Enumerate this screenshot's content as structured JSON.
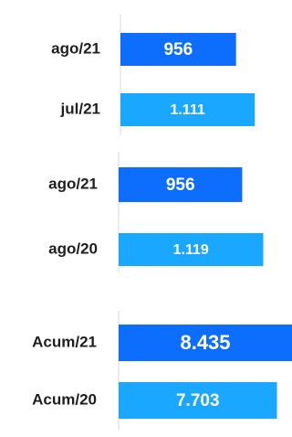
{
  "colors": {
    "current": "#0d6efd",
    "comparison": "#1aa7ff",
    "axis": "#d9d9d9",
    "label_text": "#1f1f1f",
    "value_text": "#ffffff"
  },
  "chart_data": [
    {
      "type": "bar",
      "orientation": "horizontal",
      "categories": [
        "ago/21",
        "jul/21"
      ],
      "values": [
        956,
        1111
      ],
      "value_labels": [
        "956",
        "1.111"
      ],
      "bar_colors": [
        "#0d6efd",
        "#1aa7ff"
      ],
      "xlim": [
        0,
        1200
      ],
      "grid": false,
      "legend": "none"
    },
    {
      "type": "bar",
      "orientation": "horizontal",
      "categories": [
        "ago/21",
        "ago/20"
      ],
      "values": [
        956,
        1119
      ],
      "value_labels": [
        "956",
        "1.119"
      ],
      "bar_colors": [
        "#0d6efd",
        "#1aa7ff"
      ],
      "xlim": [
        0,
        1200
      ],
      "grid": false,
      "legend": "none"
    },
    {
      "type": "bar",
      "orientation": "horizontal",
      "categories": [
        "Acum/21",
        "Acum/20"
      ],
      "values": [
        8435,
        7703
      ],
      "value_labels": [
        "8.435",
        "7.703"
      ],
      "bar_colors": [
        "#0d6efd",
        "#1aa7ff"
      ],
      "xlim": [
        0,
        8435
      ],
      "grid": false,
      "legend": "none"
    }
  ]
}
